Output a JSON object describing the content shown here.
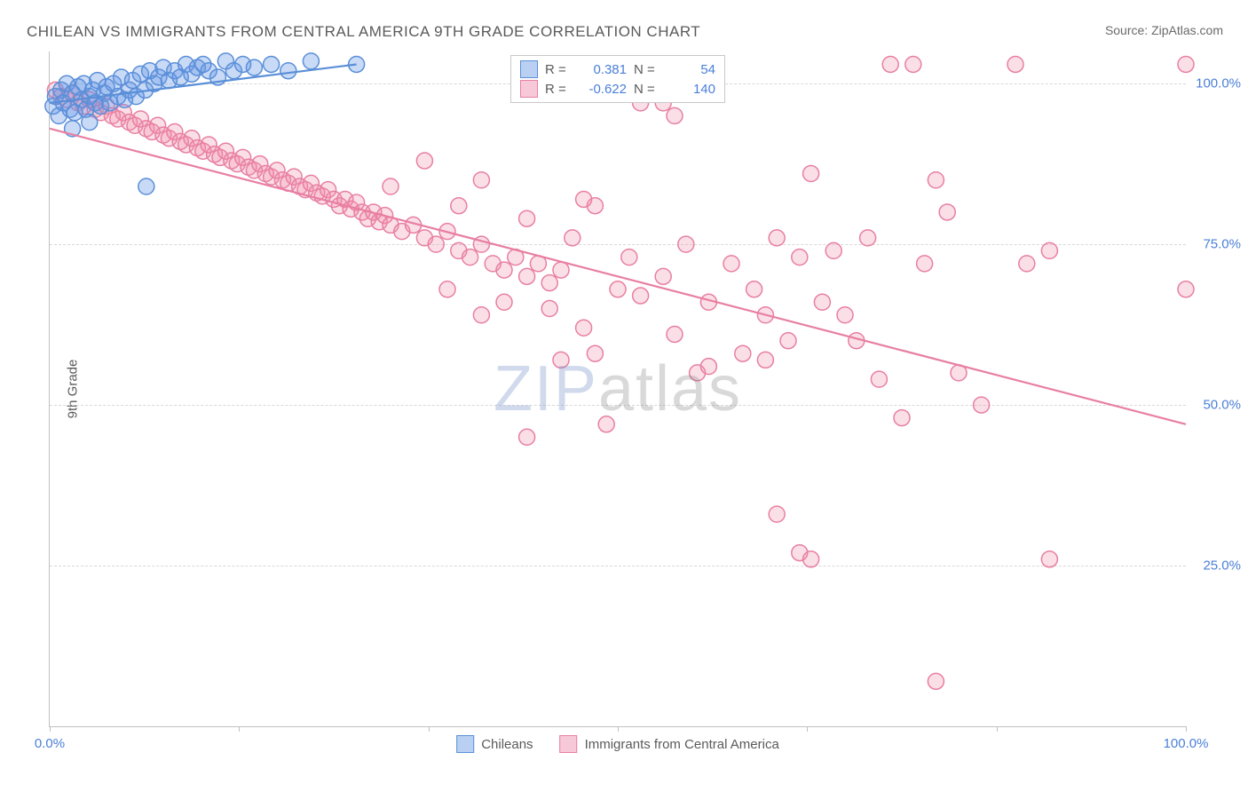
{
  "title": "CHILEAN VS IMMIGRANTS FROM CENTRAL AMERICA 9TH GRADE CORRELATION CHART",
  "source": "Source: ZipAtlas.com",
  "ylabel": "9th Grade",
  "watermark": {
    "left": "ZIP",
    "right": "atlas"
  },
  "chart": {
    "type": "scatter",
    "background_color": "#ffffff",
    "grid_color": "#d8d8d8",
    "axis_color": "#c0c0c0",
    "text_color": "#5a5a5a",
    "value_color": "#4a7fd8",
    "xlim": [
      0,
      100
    ],
    "ylim": [
      0,
      105
    ],
    "yticks": [
      25,
      50,
      75,
      100
    ],
    "ytick_labels": [
      "25.0%",
      "50.0%",
      "75.0%",
      "100.0%"
    ],
    "xticks": [
      0,
      16.67,
      33.33,
      50,
      66.67,
      83.33,
      100
    ],
    "xtick_labels": {
      "0": "0.0%",
      "100": "100.0%"
    },
    "marker_radius": 9,
    "marker_stroke_width": 1.5,
    "trend_line_width": 2.2,
    "series": [
      {
        "key": "chilean",
        "label": "Chileans",
        "fill": "rgba(100,150,230,0.35)",
        "stroke": "#5a8fd8",
        "swatch_fill": "#b9d0f2",
        "swatch_stroke": "#5a8fd8",
        "R": "0.381",
        "N": "54",
        "trend": {
          "x1": 0,
          "y1": 97,
          "x2": 27,
          "y2": 103
        },
        "points": [
          [
            0.3,
            96.5
          ],
          [
            0.5,
            98
          ],
          [
            0.8,
            95
          ],
          [
            1.0,
            99
          ],
          [
            1.2,
            97
          ],
          [
            1.5,
            100
          ],
          [
            1.8,
            96
          ],
          [
            2.0,
            98.5
          ],
          [
            2.2,
            95.5
          ],
          [
            2.5,
            99.5
          ],
          [
            2.8,
            97.5
          ],
          [
            3.0,
            100
          ],
          [
            3.2,
            96
          ],
          [
            3.5,
            98
          ],
          [
            3.8,
            99
          ],
          [
            4.0,
            97
          ],
          [
            4.2,
            100.5
          ],
          [
            4.5,
            96.5
          ],
          [
            4.8,
            98.5
          ],
          [
            5.0,
            99.5
          ],
          [
            5.3,
            97
          ],
          [
            5.6,
            100
          ],
          [
            6.0,
            98
          ],
          [
            6.3,
            101
          ],
          [
            6.6,
            97.5
          ],
          [
            7.0,
            99
          ],
          [
            7.3,
            100.5
          ],
          [
            7.6,
            98
          ],
          [
            8.0,
            101.5
          ],
          [
            8.4,
            99
          ],
          [
            8.8,
            102
          ],
          [
            9.2,
            100
          ],
          [
            9.6,
            101
          ],
          [
            10.0,
            102.5
          ],
          [
            10.5,
            100.5
          ],
          [
            11.0,
            102
          ],
          [
            11.5,
            101
          ],
          [
            12.0,
            103
          ],
          [
            12.5,
            101.5
          ],
          [
            13.0,
            102.5
          ],
          [
            13.5,
            103
          ],
          [
            14.0,
            102
          ],
          [
            14.8,
            101
          ],
          [
            15.5,
            103.5
          ],
          [
            16.2,
            102
          ],
          [
            17.0,
            103
          ],
          [
            18.0,
            102.5
          ],
          [
            19.5,
            103
          ],
          [
            21.0,
            102
          ],
          [
            23.0,
            103.5
          ],
          [
            27.0,
            103
          ],
          [
            8.5,
            84
          ],
          [
            2.0,
            93
          ],
          [
            3.5,
            94
          ]
        ]
      },
      {
        "key": "central_america",
        "label": "Immigrants from Central America",
        "fill": "rgba(240,140,170,0.28)",
        "stroke": "#e87fa3",
        "swatch_fill": "#f7c9d8",
        "swatch_stroke": "#e87fa3",
        "R": "-0.622",
        "N": "140",
        "trend": {
          "x1": 0,
          "y1": 93,
          "x2": 100,
          "y2": 47
        },
        "points": [
          [
            0.5,
            99
          ],
          [
            1,
            98
          ],
          [
            1.5,
            97.5
          ],
          [
            2,
            98.5
          ],
          [
            2.5,
            97
          ],
          [
            3,
            96.5
          ],
          [
            3.5,
            97.5
          ],
          [
            4,
            96
          ],
          [
            4.5,
            95.5
          ],
          [
            5,
            96.5
          ],
          [
            5.5,
            95
          ],
          [
            6,
            94.5
          ],
          [
            6.5,
            95.5
          ],
          [
            7,
            94
          ],
          [
            7.5,
            93.5
          ],
          [
            8,
            94.5
          ],
          [
            8.5,
            93
          ],
          [
            9,
            92.5
          ],
          [
            9.5,
            93.5
          ],
          [
            10,
            92
          ],
          [
            10.5,
            91.5
          ],
          [
            11,
            92.5
          ],
          [
            11.5,
            91
          ],
          [
            12,
            90.5
          ],
          [
            12.5,
            91.5
          ],
          [
            13,
            90
          ],
          [
            13.5,
            89.5
          ],
          [
            14,
            90.5
          ],
          [
            14.5,
            89
          ],
          [
            15,
            88.5
          ],
          [
            15.5,
            89.5
          ],
          [
            16,
            88
          ],
          [
            16.5,
            87.5
          ],
          [
            17,
            88.5
          ],
          [
            17.5,
            87
          ],
          [
            18,
            86.5
          ],
          [
            18.5,
            87.5
          ],
          [
            19,
            86
          ],
          [
            19.5,
            85.5
          ],
          [
            20,
            86.5
          ],
          [
            20.5,
            85
          ],
          [
            21,
            84.5
          ],
          [
            21.5,
            85.5
          ],
          [
            22,
            84
          ],
          [
            22.5,
            83.5
          ],
          [
            23,
            84.5
          ],
          [
            23.5,
            83
          ],
          [
            24,
            82.5
          ],
          [
            24.5,
            83.5
          ],
          [
            25,
            82
          ],
          [
            25.5,
            81
          ],
          [
            26,
            82
          ],
          [
            26.5,
            80.5
          ],
          [
            27,
            81.5
          ],
          [
            27.5,
            80
          ],
          [
            28,
            79
          ],
          [
            28.5,
            80
          ],
          [
            29,
            78.5
          ],
          [
            29.5,
            79.5
          ],
          [
            30,
            78
          ],
          [
            31,
            77
          ],
          [
            32,
            78
          ],
          [
            33,
            76
          ],
          [
            34,
            75
          ],
          [
            35,
            77
          ],
          [
            36,
            74
          ],
          [
            37,
            73
          ],
          [
            38,
            75
          ],
          [
            39,
            72
          ],
          [
            40,
            71
          ],
          [
            41,
            73
          ],
          [
            42,
            70
          ],
          [
            43,
            72
          ],
          [
            44,
            69
          ],
          [
            45,
            71
          ],
          [
            36,
            81
          ],
          [
            42,
            79
          ],
          [
            46,
            76
          ],
          [
            40,
            66
          ],
          [
            44,
            65
          ],
          [
            47,
            62
          ],
          [
            50,
            68
          ],
          [
            48,
            58
          ],
          [
            52,
            67
          ],
          [
            45,
            57
          ],
          [
            48,
            81
          ],
          [
            51,
            73
          ],
          [
            54,
            70
          ],
          [
            56,
            75
          ],
          [
            55,
            61
          ],
          [
            58,
            66
          ],
          [
            60,
            72
          ],
          [
            57,
            55
          ],
          [
            62,
            68
          ],
          [
            64,
            76
          ],
          [
            63,
            64
          ],
          [
            65,
            60
          ],
          [
            66,
            73
          ],
          [
            68,
            66
          ],
          [
            70,
            64
          ],
          [
            67,
            86
          ],
          [
            69,
            74
          ],
          [
            72,
            76
          ],
          [
            71,
            60
          ],
          [
            73,
            54
          ],
          [
            64,
            33
          ],
          [
            66,
            27
          ],
          [
            67,
            26
          ],
          [
            74,
            103
          ],
          [
            76,
            103
          ],
          [
            78,
            85
          ],
          [
            79,
            80
          ],
          [
            77,
            72
          ],
          [
            80,
            55
          ],
          [
            82,
            50
          ],
          [
            85,
            103
          ],
          [
            86,
            72
          ],
          [
            88,
            74
          ],
          [
            100,
            103
          ],
          [
            100,
            68
          ],
          [
            78,
            7
          ],
          [
            88,
            26
          ],
          [
            50,
            103
          ],
          [
            52,
            103
          ],
          [
            55,
            103
          ],
          [
            47,
            82
          ],
          [
            42,
            45
          ],
          [
            49,
            47
          ],
          [
            35,
            68
          ],
          [
            38,
            64
          ],
          [
            58,
            56
          ],
          [
            61,
            58
          ],
          [
            48,
            103
          ],
          [
            49,
            99
          ],
          [
            52,
            97
          ],
          [
            54,
            97
          ],
          [
            55,
            95
          ],
          [
            75,
            48
          ],
          [
            38,
            85
          ],
          [
            33,
            88
          ],
          [
            30,
            84
          ],
          [
            63,
            57
          ]
        ]
      }
    ]
  }
}
